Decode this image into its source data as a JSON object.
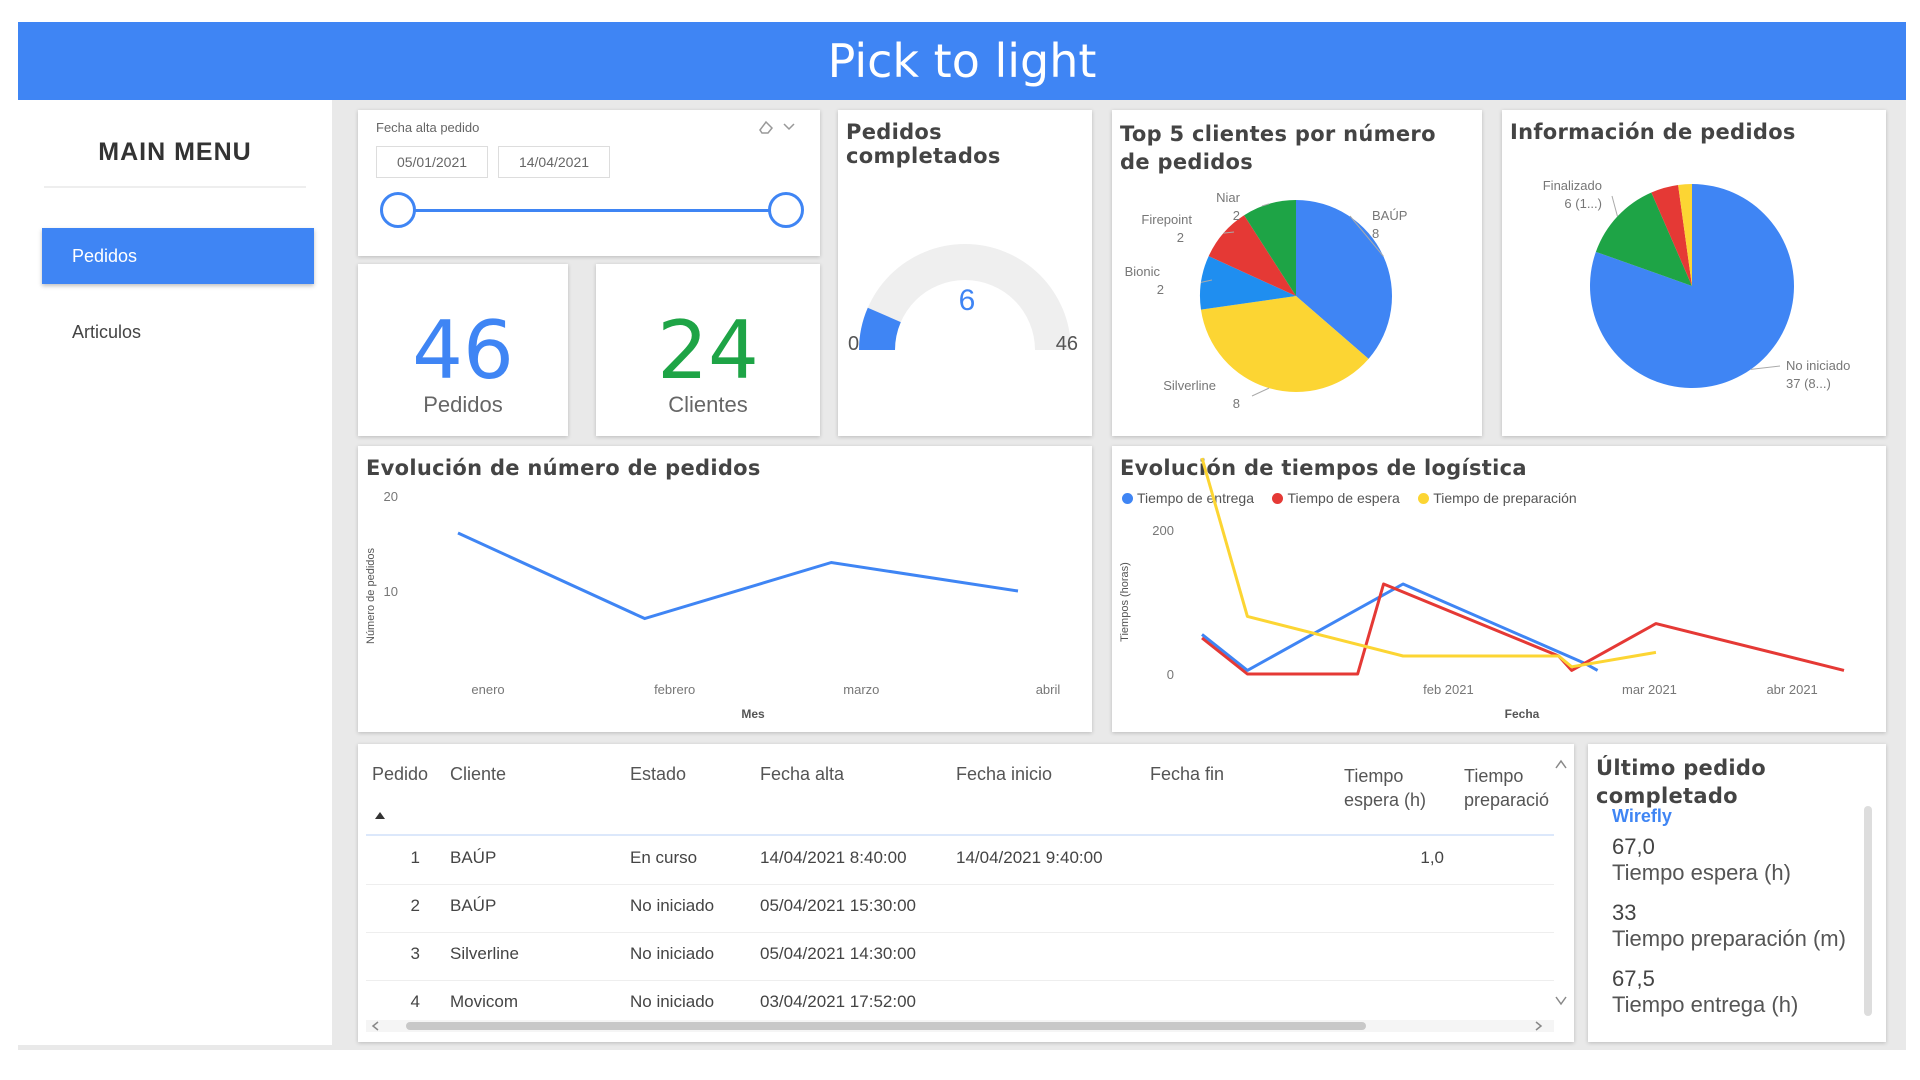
{
  "header": {
    "title": "Pick to light"
  },
  "sidebar": {
    "title": "MAIN MENU",
    "items": [
      {
        "label": "Pedidos",
        "active": true
      },
      {
        "label": "Articulos",
        "active": false
      }
    ]
  },
  "date_filter": {
    "label": "Fecha alta pedido",
    "start": "05/01/2021",
    "end": "14/04/2021"
  },
  "kpis": {
    "pedidos": {
      "value": "46",
      "label": "Pedidos",
      "color": "#3f85f4"
    },
    "clientes": {
      "value": "24",
      "label": "Clientes",
      "color": "#1ea446"
    }
  },
  "gauge": {
    "title": "Pedidos completados",
    "value": 6,
    "min": 0,
    "max": 46,
    "value_label": "6",
    "min_label": "0",
    "max_label": "46"
  },
  "top_clients": {
    "title": "Top 5 clientes por número de pedidos"
  },
  "orders_info": {
    "title": "Información de pedidos"
  },
  "orders_evolution": {
    "title": "Evolución de número de pedidos"
  },
  "logistics_evolution": {
    "title": "Evolución de tiempos de logística"
  },
  "chart_data": [
    {
      "type": "pie",
      "title": "Top 5 clientes por número de pedidos",
      "slices": [
        {
          "label": "BAÚP 8",
          "value": 8,
          "color": "#3f85f4"
        },
        {
          "label": "Silverline 8",
          "value": 8,
          "color": "#fcd533"
        },
        {
          "label": "Bionic 2",
          "value": 2,
          "color": "#1f8ef0"
        },
        {
          "label": "Firepoint 2",
          "value": 2,
          "color": "#e53935"
        },
        {
          "label": "Niar 2",
          "value": 2,
          "color": "#1ea446"
        }
      ]
    },
    {
      "type": "pie",
      "title": "Información de pedidos",
      "slices": [
        {
          "label": "No iniciado 37 (8...)",
          "value": 37,
          "color": "#3f85f4"
        },
        {
          "label": "Finalizado 6 (1...)",
          "value": 6,
          "color": "#1ea446"
        },
        {
          "label": "",
          "value": 2,
          "color": "#e53935"
        },
        {
          "label": "",
          "value": 1,
          "color": "#fcd533"
        }
      ]
    },
    {
      "type": "line",
      "title": "Evolución de número de pedidos",
      "xlabel": "Mes",
      "ylabel": "Número de pedidos",
      "categories": [
        "enero",
        "febrero",
        "marzo",
        "abril"
      ],
      "yticks": [
        "10",
        "20"
      ],
      "ylim": [
        0,
        20
      ],
      "series": [
        {
          "values": [
            16.1,
            7.1,
            13,
            10
          ],
          "color": "#3f85f4"
        }
      ]
    },
    {
      "type": "line",
      "title": "Evolución de tiempos de logística",
      "xlabel": "Fecha",
      "ylabel": "Tiempos (horas)",
      "xticks": [
        "feb 2021",
        "mar 2021",
        "abr 2021"
      ],
      "yticks": [
        "0",
        "200"
      ],
      "ylim": [
        0,
        200
      ],
      "series": [
        {
          "name": "Tiempo de entrega",
          "color": "#3f85f4",
          "x": [
            "2021-01-05",
            "2021-01-12",
            "2021-02-05",
            "2021-03-05",
            "2021-03-07"
          ],
          "y": [
            55,
            5,
            125,
            15,
            5
          ]
        },
        {
          "name": "Tiempo de espera",
          "color": "#e53935",
          "x": [
            "2021-01-05",
            "2021-01-12",
            "2021-01-29",
            "2021-02-02",
            "2021-03-01",
            "2021-03-03",
            "2021-03-16",
            "2021-04-14"
          ],
          "y": [
            50,
            0,
            0,
            125,
            25,
            5,
            70,
            5
          ]
        },
        {
          "name": "Tiempo de preparación",
          "color": "#fcd533",
          "x": [
            "2021-01-05",
            "2021-01-12",
            "2021-02-05",
            "2021-03-01",
            "2021-03-03",
            "2021-03-16"
          ],
          "y": [
            300,
            80,
            25,
            25,
            10,
            30
          ]
        }
      ]
    }
  ],
  "orders_table": {
    "headers": [
      "Pedido",
      "Cliente",
      "Estado",
      "Fecha alta",
      "Fecha inicio",
      "Fecha fin",
      "Tiempo espera (h)",
      "Tiempo preparació"
    ],
    "rows": [
      {
        "pedido": "1",
        "cliente": "BAÚP",
        "estado": "En curso",
        "fecha_alta": "14/04/2021 8:40:00",
        "fecha_inicio": "14/04/2021 9:40:00",
        "fecha_fin": "",
        "espera": "1,0",
        "prep": ""
      },
      {
        "pedido": "2",
        "cliente": "BAÚP",
        "estado": "No iniciado",
        "fecha_alta": "05/04/2021 15:30:00",
        "fecha_inicio": "",
        "fecha_fin": "",
        "espera": "",
        "prep": ""
      },
      {
        "pedido": "3",
        "cliente": "Silverline",
        "estado": "No iniciado",
        "fecha_alta": "05/04/2021 14:30:00",
        "fecha_inicio": "",
        "fecha_fin": "",
        "espera": "",
        "prep": ""
      },
      {
        "pedido": "4",
        "cliente": "Movicom",
        "estado": "No iniciado",
        "fecha_alta": "03/04/2021 17:52:00",
        "fecha_inicio": "",
        "fecha_fin": "",
        "espera": "",
        "prep": ""
      }
    ]
  },
  "last_order": {
    "title": "Último pedido completado",
    "client": "Wirefly",
    "espera_value": "67,0",
    "espera_label": "Tiempo espera (h)",
    "prep_value": "33",
    "prep_label": "Tiempo preparación (m)",
    "entrega_value": "67,5",
    "entrega_label": "Tiempo entrega (h)"
  }
}
